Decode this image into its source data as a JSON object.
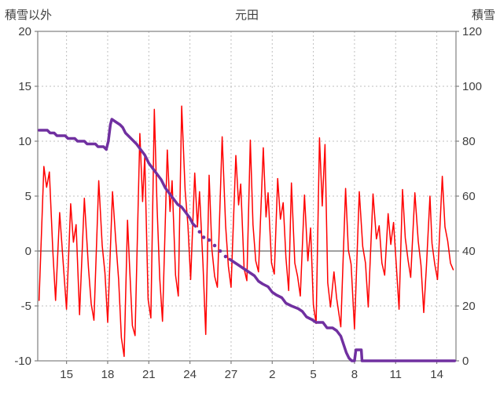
{
  "chart_data": {
    "type": "line",
    "title": "元田",
    "left_axis": {
      "label": "積雪以外",
      "min": -10,
      "max": 20,
      "ticks": [
        20,
        15,
        10,
        5,
        0,
        -5,
        -10
      ]
    },
    "right_axis": {
      "label": "積雪",
      "min": 0,
      "max": 120,
      "ticks": [
        120,
        100,
        80,
        60,
        40,
        20,
        0
      ]
    },
    "x_axis": {
      "min": 12.9,
      "max": 43.4,
      "tick_positions": [
        15,
        18,
        21,
        24,
        27,
        30,
        33,
        36,
        39,
        42
      ],
      "tick_labels": [
        "15",
        "18",
        "21",
        "24",
        "27",
        "2",
        "5",
        "8",
        "11",
        "14"
      ]
    },
    "grid": {
      "color": "#bfbfbf",
      "dash": "2 3"
    },
    "zero_line_color": "#808080",
    "border_color": "#808080",
    "text_color": "#3f3f3f",
    "series": [
      {
        "name": "temperature",
        "axis": "left",
        "color": "#ff0000",
        "width": 1.5,
        "style": "line",
        "points": [
          [
            13.0,
            -4.5
          ],
          [
            13.35,
            7.7
          ],
          [
            13.55,
            5.8
          ],
          [
            13.75,
            7.2
          ],
          [
            14.0,
            0.0
          ],
          [
            14.2,
            -4.5
          ],
          [
            14.5,
            3.5
          ],
          [
            14.75,
            -1.0
          ],
          [
            15.0,
            -5.3
          ],
          [
            15.3,
            4.3
          ],
          [
            15.5,
            0.8
          ],
          [
            15.7,
            2.4
          ],
          [
            15.95,
            -5.8
          ],
          [
            16.3,
            4.8
          ],
          [
            16.6,
            -1.5
          ],
          [
            16.8,
            -4.8
          ],
          [
            17.0,
            -6.3
          ],
          [
            17.35,
            6.4
          ],
          [
            17.6,
            0.5
          ],
          [
            17.8,
            -2.0
          ],
          [
            18.0,
            -6.5
          ],
          [
            18.35,
            5.4
          ],
          [
            18.6,
            0.8
          ],
          [
            18.8,
            -2.6
          ],
          [
            19.0,
            -7.9
          ],
          [
            19.2,
            -9.6
          ],
          [
            19.45,
            2.8
          ],
          [
            19.6,
            -1.5
          ],
          [
            19.8,
            -6.8
          ],
          [
            20.0,
            -7.7
          ],
          [
            20.35,
            10.7
          ],
          [
            20.55,
            4.5
          ],
          [
            20.7,
            8.6
          ],
          [
            20.95,
            -4.4
          ],
          [
            21.15,
            -6.1
          ],
          [
            21.4,
            12.9
          ],
          [
            21.6,
            4.0
          ],
          [
            21.8,
            -2.5
          ],
          [
            22.0,
            -6.4
          ],
          [
            22.35,
            9.2
          ],
          [
            22.55,
            3.6
          ],
          [
            22.7,
            6.4
          ],
          [
            22.95,
            -2.2
          ],
          [
            23.15,
            -4.1
          ],
          [
            23.4,
            13.2
          ],
          [
            23.65,
            5.5
          ],
          [
            23.85,
            2.4
          ],
          [
            24.05,
            -2.6
          ],
          [
            24.35,
            7.1
          ],
          [
            24.55,
            2.2
          ],
          [
            24.7,
            5.4
          ],
          [
            24.95,
            -1.2
          ],
          [
            25.15,
            -7.6
          ],
          [
            25.4,
            6.9
          ],
          [
            25.6,
            0.2
          ],
          [
            25.8,
            -2.3
          ],
          [
            26.0,
            -3.3
          ],
          [
            26.35,
            10.4
          ],
          [
            26.6,
            2.3
          ],
          [
            26.8,
            -1.4
          ],
          [
            27.0,
            -3.3
          ],
          [
            27.35,
            8.7
          ],
          [
            27.55,
            4.2
          ],
          [
            27.7,
            6.1
          ],
          [
            27.95,
            -1.6
          ],
          [
            28.15,
            -2.7
          ],
          [
            28.4,
            10.1
          ],
          [
            28.6,
            2.4
          ],
          [
            28.8,
            -0.9
          ],
          [
            29.0,
            -1.9
          ],
          [
            29.35,
            9.4
          ],
          [
            29.55,
            3.1
          ],
          [
            29.7,
            5.3
          ],
          [
            29.95,
            -1.1
          ],
          [
            30.15,
            -2.1
          ],
          [
            30.4,
            6.6
          ],
          [
            30.6,
            2.9
          ],
          [
            30.8,
            4.4
          ],
          [
            31.0,
            -0.6
          ],
          [
            31.2,
            -3.6
          ],
          [
            31.4,
            6.2
          ],
          [
            31.65,
            -1.1
          ],
          [
            31.85,
            -2.3
          ],
          [
            32.05,
            -4.1
          ],
          [
            32.35,
            5.1
          ],
          [
            32.6,
            -0.9
          ],
          [
            32.8,
            2.1
          ],
          [
            33.0,
            -4.9
          ],
          [
            33.2,
            -6.6
          ],
          [
            33.45,
            10.3
          ],
          [
            33.65,
            4.1
          ],
          [
            33.85,
            9.7
          ],
          [
            34.05,
            -2.9
          ],
          [
            34.25,
            -5.1
          ],
          [
            34.5,
            -1.9
          ],
          [
            34.7,
            -4.3
          ],
          [
            35.0,
            -6.9
          ],
          [
            35.35,
            5.7
          ],
          [
            35.55,
            0.1
          ],
          [
            35.75,
            -1.2
          ],
          [
            36.0,
            -7.1
          ],
          [
            36.35,
            5.4
          ],
          [
            36.6,
            0.4
          ],
          [
            36.8,
            -1.1
          ],
          [
            37.0,
            -5.1
          ],
          [
            37.35,
            5.2
          ],
          [
            37.6,
            1.1
          ],
          [
            37.8,
            2.3
          ],
          [
            38.0,
            -1.1
          ],
          [
            38.2,
            -2.2
          ],
          [
            38.45,
            3.4
          ],
          [
            38.65,
            0.6
          ],
          [
            38.85,
            2.6
          ],
          [
            39.05,
            -1.3
          ],
          [
            39.25,
            -5.3
          ],
          [
            39.5,
            5.6
          ],
          [
            39.7,
            1.2
          ],
          [
            39.9,
            -0.8
          ],
          [
            40.1,
            -2.4
          ],
          [
            40.4,
            5.3
          ],
          [
            40.65,
            0.9
          ],
          [
            40.85,
            -1.3
          ],
          [
            41.05,
            -5.6
          ],
          [
            41.25,
            -1.3
          ],
          [
            41.5,
            5.0
          ],
          [
            41.65,
            0.7
          ],
          [
            41.85,
            -1.2
          ],
          [
            42.05,
            -2.6
          ],
          [
            42.4,
            6.8
          ],
          [
            42.6,
            2.2
          ],
          [
            42.8,
            0.9
          ],
          [
            43.0,
            -1.1
          ],
          [
            43.2,
            -1.7
          ]
        ]
      },
      {
        "name": "snow-depth",
        "axis": "right",
        "color": "#7030a0",
        "width": 3.5,
        "style": "line",
        "points": [
          [
            13.0,
            84
          ],
          [
            13.6,
            84
          ],
          [
            13.8,
            83
          ],
          [
            14.1,
            83
          ],
          [
            14.3,
            82
          ],
          [
            14.9,
            82
          ],
          [
            15.1,
            81
          ],
          [
            15.6,
            81
          ],
          [
            15.8,
            80
          ],
          [
            16.3,
            80
          ],
          [
            16.5,
            79
          ],
          [
            17.1,
            79
          ],
          [
            17.3,
            78
          ],
          [
            17.7,
            78
          ],
          [
            17.9,
            77
          ],
          [
            18.05,
            80
          ],
          [
            18.2,
            86
          ],
          [
            18.3,
            88
          ],
          [
            18.6,
            87
          ],
          [
            18.9,
            86
          ],
          [
            19.1,
            85
          ],
          [
            19.3,
            83
          ],
          [
            19.5,
            82
          ],
          [
            19.7,
            81
          ],
          [
            19.9,
            80
          ],
          [
            20.1,
            79
          ],
          [
            20.4,
            77
          ],
          [
            20.7,
            75
          ],
          [
            21.0,
            72
          ],
          [
            21.3,
            70
          ],
          [
            21.6,
            68
          ],
          [
            21.9,
            66
          ],
          [
            22.2,
            63
          ],
          [
            22.5,
            61
          ],
          [
            22.8,
            59
          ],
          [
            23.1,
            57
          ],
          [
            23.4,
            56
          ],
          [
            23.7,
            54
          ],
          [
            24.0,
            52
          ],
          [
            24.2,
            50
          ],
          [
            24.4,
            49
          ]
        ]
      },
      {
        "name": "snow-depth-sparse",
        "axis": "right",
        "color": "#7030a0",
        "style": "markers",
        "marker_r": 2.3,
        "points": [
          [
            24.7,
            47
          ],
          [
            25.0,
            45
          ],
          [
            25.4,
            44
          ],
          [
            25.8,
            42
          ],
          [
            26.2,
            40
          ],
          [
            26.6,
            38
          ]
        ]
      },
      {
        "name": "snow-depth-tail",
        "axis": "right",
        "color": "#7030a0",
        "width": 3.5,
        "style": "line",
        "points": [
          [
            26.9,
            37
          ],
          [
            27.2,
            36
          ],
          [
            27.5,
            35
          ],
          [
            27.8,
            34
          ],
          [
            28.1,
            33
          ],
          [
            28.4,
            32
          ],
          [
            28.7,
            31
          ],
          [
            29.0,
            29
          ],
          [
            29.3,
            28
          ],
          [
            29.7,
            27
          ],
          [
            30.0,
            25
          ],
          [
            30.3,
            24
          ],
          [
            30.7,
            23
          ],
          [
            31.0,
            21
          ],
          [
            31.4,
            20
          ],
          [
            31.9,
            19
          ],
          [
            32.2,
            18
          ],
          [
            32.5,
            16
          ],
          [
            32.9,
            15
          ],
          [
            33.2,
            14
          ],
          [
            33.7,
            14
          ],
          [
            34.0,
            12
          ],
          [
            34.4,
            12
          ],
          [
            34.7,
            11
          ],
          [
            35.0,
            9
          ],
          [
            35.2,
            6
          ],
          [
            35.4,
            3
          ],
          [
            35.6,
            1
          ],
          [
            35.8,
            0
          ],
          [
            36.0,
            0
          ],
          [
            36.1,
            4
          ],
          [
            36.5,
            4
          ],
          [
            36.55,
            0
          ],
          [
            43.3,
            0
          ]
        ]
      }
    ]
  }
}
